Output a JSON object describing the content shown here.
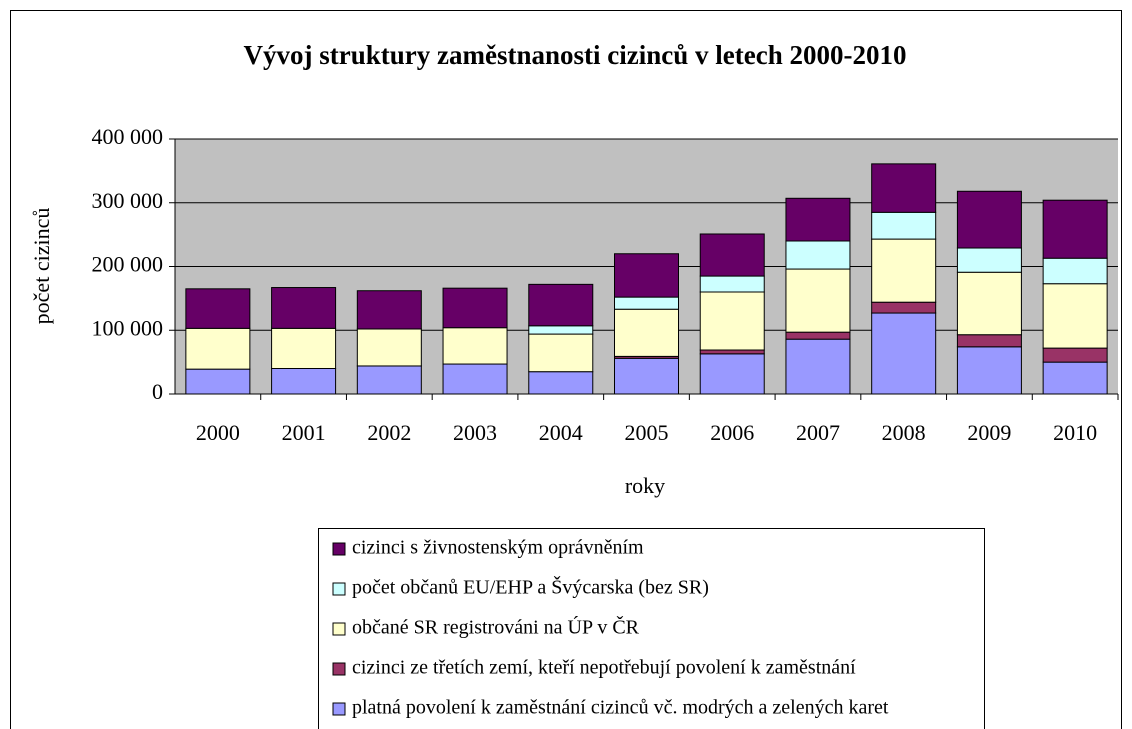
{
  "chart_data": {
    "type": "bar",
    "stacked": true,
    "title": "Vývoj struktury zaměstnanosti cizinců v letech 2000-2010",
    "xlabel": "roky",
    "ylabel": "počet cizinců",
    "categories": [
      "2000",
      "2001",
      "2002",
      "2003",
      "2004",
      "2005",
      "2006",
      "2007",
      "2008",
      "2009",
      "2010"
    ],
    "series": [
      {
        "name": "platná povolení k zaměstnání cizinců vč. modrých a zelených karet",
        "color": "#9999ff",
        "values": [
          39000,
          40000,
          44000,
          47000,
          35000,
          56000,
          63000,
          86000,
          127000,
          74000,
          50000
        ]
      },
      {
        "name": "cizinci ze třetích zemí, kteří nepotřebují povolení k zaměstnání",
        "color": "#993366",
        "values": [
          0,
          0,
          0,
          0,
          0,
          3000,
          6000,
          11000,
          17000,
          19000,
          22000
        ]
      },
      {
        "name": "občané SR registrováni na ÚP v ČR",
        "color": "#ffffcc",
        "values": [
          64000,
          63000,
          58000,
          57000,
          59000,
          74000,
          91000,
          99000,
          99000,
          98000,
          101000
        ]
      },
      {
        "name": "počet občanů EU/EHP a Švýcarska (bez SR)",
        "color": "#ccffff",
        "values": [
          0,
          0,
          0,
          0,
          13000,
          19000,
          25000,
          44000,
          42000,
          38000,
          40000
        ]
      },
      {
        "name": "cizinci s živnostenským oprávněním",
        "color": "#660066",
        "values": [
          62000,
          64000,
          60000,
          62000,
          65000,
          68000,
          66000,
          67000,
          76000,
          89000,
          91000
        ]
      }
    ],
    "ylim": [
      0,
      400000
    ],
    "yticks": [
      0,
      {
        "value": 100000,
        "label": "100 000"
      },
      {
        "value": 200000,
        "label": "200 000"
      },
      {
        "value": 300000,
        "label": "300 000"
      },
      {
        "value": 400000,
        "label": "400 000"
      }
    ],
    "grid": true,
    "legend": "bottom"
  }
}
